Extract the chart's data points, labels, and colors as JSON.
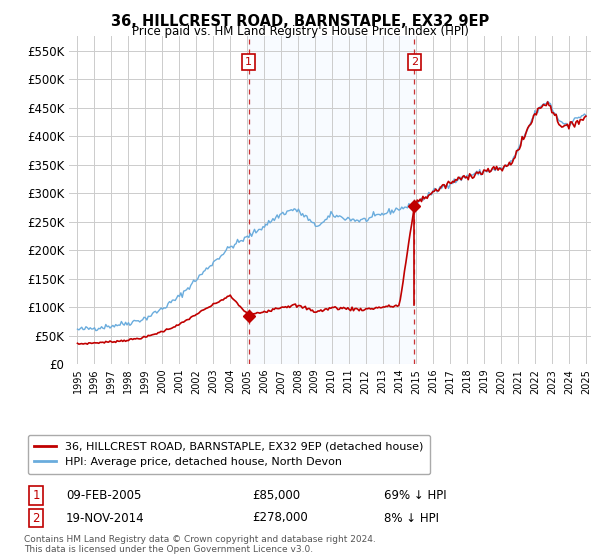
{
  "title": "36, HILLCREST ROAD, BARNSTAPLE, EX32 9EP",
  "subtitle": "Price paid vs. HM Land Registry's House Price Index (HPI)",
  "hpi_label": "HPI: Average price, detached house, North Devon",
  "property_label": "36, HILLCREST ROAD, BARNSTAPLE, EX32 9EP (detached house)",
  "footer": "Contains HM Land Registry data © Crown copyright and database right 2024.\nThis data is licensed under the Open Government Licence v3.0.",
  "sale1_date": "09-FEB-2005",
  "sale1_price": 85000,
  "sale1_note": "69% ↓ HPI",
  "sale2_date": "19-NOV-2014",
  "sale2_price": 278000,
  "sale2_note": "8% ↓ HPI",
  "sale1_x": 2005.1,
  "sale2_x": 2014.88,
  "vline1_x": 2005.1,
  "vline2_x": 2014.88,
  "ylim": [
    0,
    575000
  ],
  "xlim_start": 1994.5,
  "xlim_end": 2025.3,
  "hpi_color": "#6aacdd",
  "property_color": "#c00000",
  "vline_color": "#c00000",
  "shade_color": "#ddeeff",
  "background_color": "#ffffff",
  "plot_bg_color": "#ffffff",
  "grid_color": "#cccccc"
}
